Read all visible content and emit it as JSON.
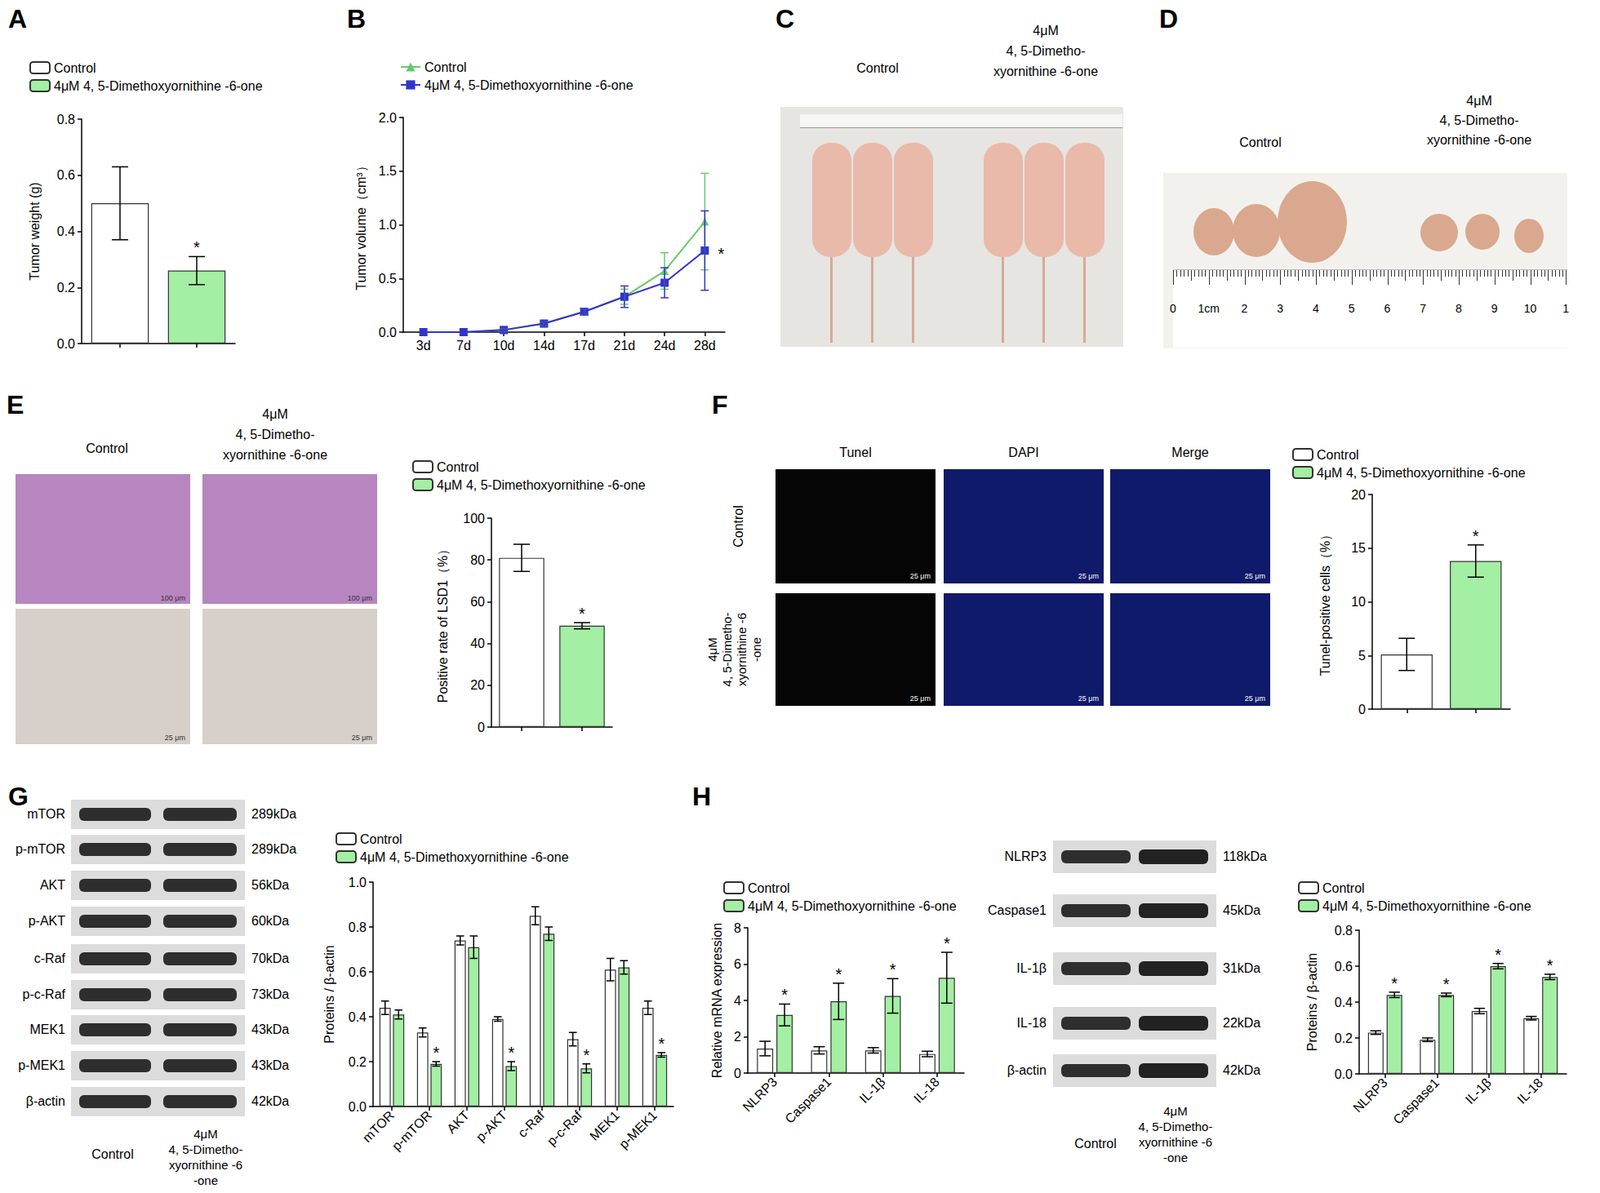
{
  "chart_data": [
    {
      "type": "bar",
      "ylabel": "Tumor weight (g)",
      "categories": [
        null,
        null
      ],
      "series": [
        {
          "name": "Control",
          "color": "#ffffff",
          "values": [
            0.5,
            null
          ],
          "errors": [
            0.13,
            null
          ]
        },
        {
          "name": "4μM 4, 5-Dimethoxyornithine -6-one",
          "color": "#a3efa3",
          "values": [
            null,
            0.26
          ],
          "errors": [
            null,
            0.05
          ],
          "annotations": [
            null,
            "*"
          ]
        }
      ],
      "ylim": [
        0,
        0.8
      ],
      "yticks": [
        {
          "value": 0,
          "label": "0.0"
        },
        0.2,
        0.4,
        0.6,
        0.8
      ],
      "grid": false,
      "legend": "top-left"
    },
    {
      "type": "line",
      "ylabel": "Tumor volume（cm³）",
      "categories": [
        "3d",
        "7d",
        "10d",
        "14d",
        "17d",
        "21d",
        "24d",
        "28d"
      ],
      "series": [
        {
          "name": "Control",
          "color": "#66cc66",
          "marker": "triangle",
          "values": [
            0,
            0,
            0.02,
            0.08,
            0.19,
            0.33,
            0.57,
            1.03
          ],
          "errors": [
            0,
            0,
            0.01,
            0.02,
            0.03,
            0.07,
            0.17,
            0.45
          ]
        },
        {
          "name": "4μM 4, 5-Dimethoxyornithine -6-one",
          "color": "#3333cc",
          "marker": "square",
          "values": [
            0,
            0,
            0.02,
            0.08,
            0.19,
            0.33,
            0.46,
            0.76
          ],
          "errors": [
            0,
            0,
            0.01,
            0.02,
            0.03,
            0.1,
            0.14,
            0.37
          ],
          "annotations": [
            null,
            null,
            null,
            null,
            null,
            null,
            null,
            "*"
          ]
        }
      ],
      "ylim": [
        0,
        2
      ],
      "yticks": [
        {
          "value": 0,
          "label": "0.0"
        },
        0.5,
        {
          "value": 1,
          "label": "1.0"
        },
        1.5,
        {
          "value": 2,
          "label": "2.0"
        }
      ],
      "grid": false,
      "legend": "top-left"
    },
    {
      "type": "bar",
      "ylabel": "Positive rate of LSD1（%）",
      "categories": [
        null,
        null
      ],
      "series": [
        {
          "name": "Control",
          "color": "#ffffff",
          "values": [
            81,
            null
          ],
          "errors": [
            6.5,
            null
          ]
        },
        {
          "name": "4μM 4, 5-Dimethoxyornithine -6-one",
          "color": "#a3efa3",
          "values": [
            null,
            48.5
          ],
          "errors": [
            null,
            1.5
          ],
          "annotations": [
            null,
            "*"
          ]
        }
      ],
      "ylim": [
        0,
        100
      ],
      "yticks": [
        0,
        20,
        40,
        60,
        80,
        100
      ],
      "grid": false,
      "legend": "top-left"
    },
    {
      "type": "bar",
      "ylabel": "Tunel-positive cells（%）",
      "categories": [
        null,
        null
      ],
      "series": [
        {
          "name": "Control",
          "color": "#ffffff",
          "values": [
            5.1,
            null
          ],
          "errors": [
            1.5,
            null
          ]
        },
        {
          "name": "4μM 4, 5-Dimethoxyornithine -6-one",
          "color": "#a3efa3",
          "values": [
            null,
            13.8
          ],
          "errors": [
            null,
            1.5
          ],
          "annotations": [
            null,
            "*"
          ]
        }
      ],
      "ylim": [
        0,
        20
      ],
      "yticks": [
        0,
        5,
        10,
        15,
        20
      ],
      "grid": false,
      "legend": "top-left"
    },
    {
      "type": "bar",
      "ylabel": "Proteins / β-actin",
      "categories": [
        "mTOR",
        "p-mTOR",
        "AKT",
        "p-AKT",
        "c-Raf",
        "p-c-Raf",
        "MEK1",
        "p-MEK1"
      ],
      "series": [
        {
          "name": "Control",
          "color": "#ffffff",
          "values": [
            0.44,
            0.33,
            0.74,
            0.39,
            0.85,
            0.3,
            0.61,
            0.44
          ],
          "errors": [
            0.03,
            0.02,
            0.02,
            0.01,
            0.04,
            0.03,
            0.05,
            0.03
          ]
        },
        {
          "name": "4μM 4, 5-Dimethoxyornithine -6-one",
          "color": "#a3efa3",
          "values": [
            0.41,
            0.19,
            0.71,
            0.18,
            0.77,
            0.17,
            0.62,
            0.23
          ],
          "errors": [
            0.02,
            0.01,
            0.05,
            0.02,
            0.03,
            0.02,
            0.03,
            0.01
          ],
          "annotations": [
            null,
            "*",
            null,
            "*",
            null,
            "*",
            null,
            "*"
          ]
        }
      ],
      "ylim": [
        0,
        1
      ],
      "yticks": [
        {
          "value": 0,
          "label": "0.0"
        },
        0.2,
        0.4,
        0.6,
        0.8,
        {
          "value": 1,
          "label": "1.0"
        }
      ],
      "grid": false,
      "legend": "top-left"
    },
    {
      "type": "bar",
      "ylabel": "Relative mRNA expression",
      "categories": [
        "NLRP3",
        "Caspase1",
        "IL-1β",
        "IL-18"
      ],
      "series": [
        {
          "name": "Control",
          "color": "#ffffff",
          "values": [
            1.35,
            1.25,
            1.25,
            1.05
          ],
          "errors": [
            0.4,
            0.2,
            0.15,
            0.15
          ]
        },
        {
          "name": "4μM 4, 5-Dimethoxyornithine -6-one",
          "color": "#a3efa3",
          "values": [
            3.2,
            3.95,
            4.25,
            5.25
          ],
          "errors": [
            0.6,
            1.0,
            0.95,
            1.4
          ],
          "annotations": [
            "*",
            "*",
            "*",
            "*"
          ]
        }
      ],
      "ylim": [
        0,
        8
      ],
      "yticks": [
        0,
        2,
        4,
        6,
        8
      ],
      "grid": false,
      "legend": "top-left"
    },
    {
      "type": "bar",
      "ylabel": "Proteins / β-actin",
      "categories": [
        "NLRP3",
        "Caspase1",
        "IL-1β",
        "IL-18"
      ],
      "series": [
        {
          "name": "Control",
          "color": "#ffffff",
          "values": [
            0.23,
            0.19,
            0.35,
            0.31
          ],
          "errors": [
            0.01,
            0.01,
            0.015,
            0.01
          ]
        },
        {
          "name": "4μM 4, 5-Dimethoxyornithine -6-one",
          "color": "#a3efa3",
          "values": [
            0.44,
            0.44,
            0.6,
            0.54
          ],
          "errors": [
            0.015,
            0.01,
            0.015,
            0.015
          ],
          "annotations": [
            "*",
            "*",
            "*",
            "*"
          ]
        }
      ],
      "ylim": [
        0,
        0.8
      ],
      "yticks": [
        {
          "value": 0,
          "label": "0.0"
        },
        0.2,
        0.4,
        0.6,
        0.8
      ],
      "grid": false,
      "legend": "top-left"
    }
  ],
  "panels": {
    "letters": [
      "A",
      "B",
      "C",
      "D",
      "E",
      "F",
      "G",
      "H"
    ],
    "C": {
      "control": "Control",
      "treatment": [
        "4μM",
        "4, 5-Dimetho-",
        "xyornithine -6-one"
      ]
    },
    "D": {
      "control": "Control",
      "treatment": [
        "4μM",
        "4, 5-Dimetho-",
        "xyornithine -6-one"
      ],
      "ruler": [
        "0",
        "1cm",
        "2",
        "3",
        "4",
        "5",
        "6",
        "7",
        "8",
        "9",
        "10",
        "1"
      ]
    },
    "E": {
      "control": "Control",
      "treatment": [
        "4μM",
        "4, 5-Dimetho-",
        "xyornithine -6-one"
      ],
      "scale_bars": [
        "100 μm",
        "25 μm"
      ]
    },
    "F": {
      "columns": [
        "Tunel",
        "DAPI",
        "Merge"
      ],
      "rows": [
        [
          "Control"
        ],
        [
          "4μM",
          "4, 5-Dimetho-",
          "xyornithine -6",
          "-one"
        ]
      ],
      "scale_bar": "25 μm"
    },
    "G": {
      "blots": [
        {
          "label": "mTOR",
          "size": "289kDa"
        },
        {
          "label": "p-mTOR",
          "size": "289kDa"
        },
        {
          "label": "AKT",
          "size": "56kDa"
        },
        {
          "label": "p-AKT",
          "size": "60kDa"
        },
        {
          "label": "c-Raf",
          "size": "70kDa"
        },
        {
          "label": "p-c-Raf",
          "size": "73kDa"
        },
        {
          "label": "MEK1",
          "size": "43kDa"
        },
        {
          "label": "p-MEK1",
          "size": "43kDa"
        },
        {
          "label": "β-actin",
          "size": "42kDa"
        }
      ],
      "lanes": [
        [
          "Control"
        ],
        [
          "4μM",
          "4, 5-Dimetho-",
          "xyornithine -6",
          "-one"
        ]
      ]
    },
    "H": {
      "blots": [
        {
          "label": "NLRP3",
          "size": "118kDa"
        },
        {
          "label": "Caspase1",
          "size": "45kDa"
        },
        {
          "label": "IL-1β",
          "size": "31kDa"
        },
        {
          "label": "IL-18",
          "size": "22kDa"
        },
        {
          "label": "β-actin",
          "size": "42kDa"
        }
      ],
      "lanes": [
        [
          "Control"
        ],
        [
          "4μM",
          "4, 5-Dimetho-",
          "xyornithine -6",
          "-one"
        ]
      ]
    }
  }
}
